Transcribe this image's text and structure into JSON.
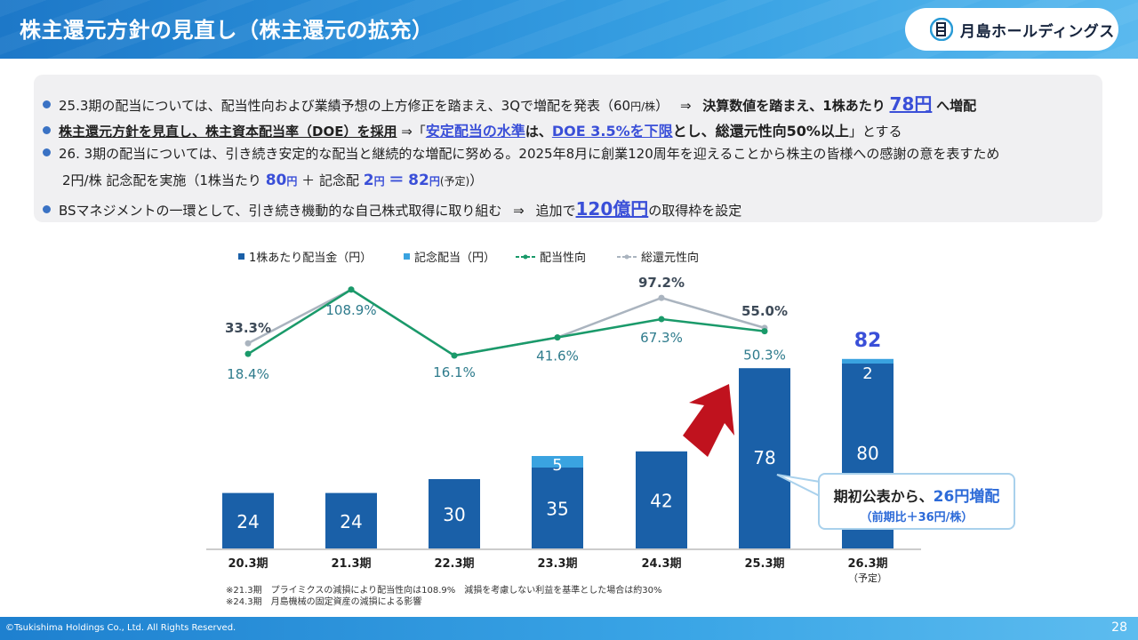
{
  "title": "株主還元方針の見直し（株主還元の拡充）",
  "logo_text": "月島ホールディングス",
  "bullets": {
    "b1": {
      "t1": "25.3期の配当については、配当性向および業績予想の上方修正を踏まえ、3Qで増配を発表（60",
      "t1s": "円/株",
      "t1e": "）",
      "arrow": "⇒",
      "t2": "決算数値を踏まえ、1株あたり",
      "big": "78円",
      "t3": "へ増配"
    },
    "b2": {
      "t1": "株主還元方針を見直し、株主資本配当率（DOE）を採用",
      "arrow": "⇒「",
      "h1": "安定配当の水準",
      "t2": "は、",
      "h2": "DOE 3.5%を下限",
      "t3": "とし、総還元性向50%以上",
      "t4": "」とする"
    },
    "b3": {
      "line1": "26. 3期の配当については、引き続き安定的な配当と継続的な増配に努める。2025年8月に創業120周年を迎えることから株主の皆様への感謝の意を表すため",
      "l2a": "2円/株 記念配を実施（1株当たり",
      "l2b": "80",
      "l2c": "円",
      "l2d": "＋ 記念配",
      "l2e": "2",
      "l2f": "円",
      "l2g": "＝",
      "l2h": "82",
      "l2i": "円",
      "l2j": "(予定)",
      "l2k": "）"
    },
    "b4": {
      "t1": "BSマネジメントの一環として、引き続き機動的な自己株式取得に取り組む",
      "arrow": "⇒",
      "t2": "追加で",
      "big": "120億円",
      "t3": "の取得枠を設定"
    }
  },
  "legend": {
    "dividend": "1株あたり配当金（円）",
    "commemorative": "記念配当（円）",
    "payout": "配当性向",
    "total_return": "総還元性向"
  },
  "chart_data": {
    "type": "bar",
    "categories": [
      "20.3期",
      "21.3期",
      "22.3期",
      "23.3期",
      "24.3期",
      "25.3期",
      "26.3期"
    ],
    "category_sub": [
      "",
      "",
      "",
      "",
      "",
      "",
      "（予定）"
    ],
    "series": [
      {
        "name": "1株あたり配当金（円）",
        "values": [
          24,
          24,
          30,
          35,
          42,
          78,
          80
        ],
        "color": "#1a60a8"
      },
      {
        "name": "記念配当（円）",
        "values": [
          0,
          0,
          0,
          5,
          0,
          0,
          2
        ],
        "color": "#3aa3e0"
      },
      {
        "name": "配当性向",
        "values": [
          18.4,
          108.9,
          16.1,
          41.6,
          67.3,
          50.3,
          null
        ],
        "labels": [
          "18.4%",
          "108.9%",
          "16.1%",
          "41.6%",
          "67.3%",
          "50.3%",
          ""
        ],
        "color": "#1a9a6a",
        "type": "line"
      },
      {
        "name": "総還元性向",
        "values": [
          33.3,
          108.9,
          16.1,
          41.6,
          97.2,
          55.0,
          null
        ],
        "labels": [
          "33.3%",
          "",
          "",
          "",
          "97.2%",
          "55.0%",
          ""
        ],
        "color": "#aab4bf",
        "type": "line"
      }
    ],
    "total_label_26": "82"
  },
  "callout": {
    "line1a": "期初公表から、",
    "line1b": "26円増配",
    "line2": "（前期比＋36円/株）"
  },
  "notes": [
    "※21.3期　プライミクスの減損により配当性向は108.9%　減損を考慮しない利益を基準とした場合は約30%",
    "※24.3期　月島機械の固定資産の減損による影響"
  ],
  "footer": {
    "copyright": "©Tsukishima Holdings Co., Ltd. All Rights Reserved.",
    "page": "28"
  }
}
